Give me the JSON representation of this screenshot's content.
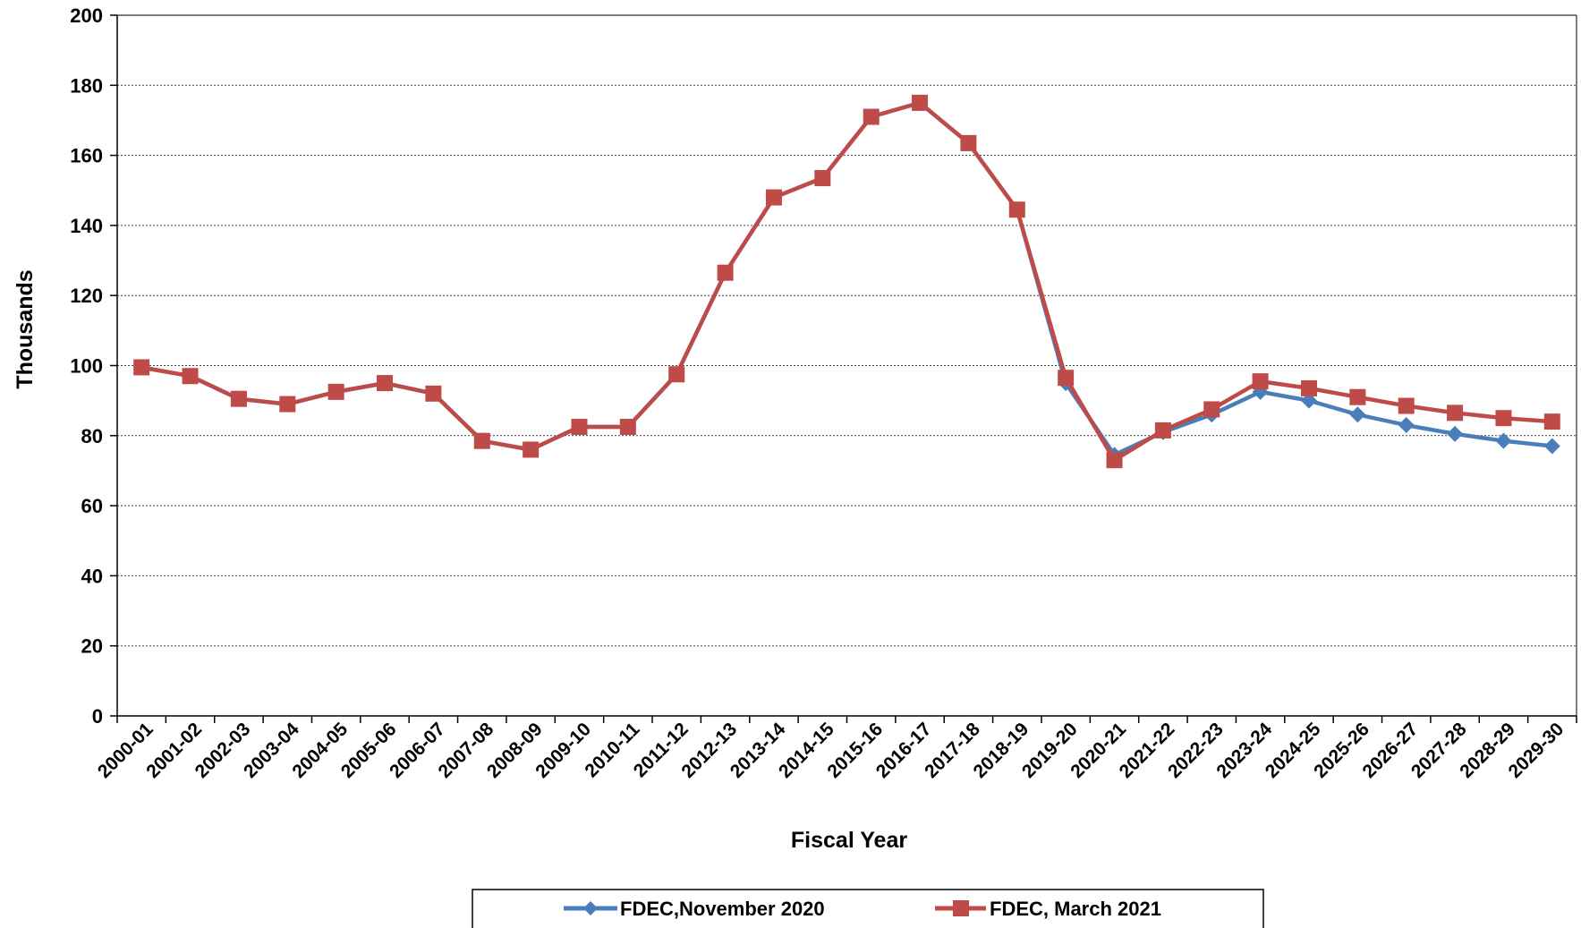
{
  "chart_data": {
    "type": "line",
    "title": "",
    "xlabel": "Fiscal Year",
    "ylabel": "Thousands",
    "ylim": [
      0,
      200
    ],
    "yticks": [
      0,
      20,
      40,
      60,
      80,
      100,
      120,
      140,
      160,
      180,
      200
    ],
    "grid": true,
    "legend_position": "bottom",
    "categories": [
      "2000-01",
      "2001-02",
      "2002-03",
      "2003-04",
      "2004-05",
      "2005-06",
      "2006-07",
      "2007-08",
      "2008-09",
      "2009-10",
      "2010-11",
      "2011-12",
      "2012-13",
      "2013-14",
      "2014-15",
      "2015-16",
      "2016-17",
      "2017-18",
      "2018-19",
      "2019-20",
      "2020-21",
      "2021-22",
      "2022-23",
      "2023-24",
      "2024-25",
      "2025-26",
      "2026-27",
      "2027-28",
      "2028-29",
      "2029-30"
    ],
    "series": [
      {
        "name": "FDEC,November 2020",
        "color": "#4a7ebb",
        "marker": "diamond",
        "values": [
          99.5,
          97,
          90.5,
          89,
          92.5,
          95,
          92,
          78.5,
          76,
          82.5,
          82.5,
          97.5,
          126.5,
          148,
          153.5,
          171,
          175,
          163.5,
          144.5,
          95,
          74.5,
          81,
          86,
          92.5,
          90,
          86,
          83,
          80.5,
          78.5,
          77
        ]
      },
      {
        "name": "FDEC, March 2021",
        "color": "#be4b48",
        "marker": "square",
        "values": [
          99.5,
          97,
          90.5,
          89,
          92.5,
          95,
          92,
          78.5,
          76,
          82.5,
          82.5,
          97.5,
          126.5,
          148,
          153.5,
          171,
          175,
          163.5,
          144.5,
          96.5,
          73,
          81.5,
          87.5,
          95.5,
          93.5,
          91,
          88.5,
          86.5,
          85,
          84
        ]
      }
    ]
  }
}
